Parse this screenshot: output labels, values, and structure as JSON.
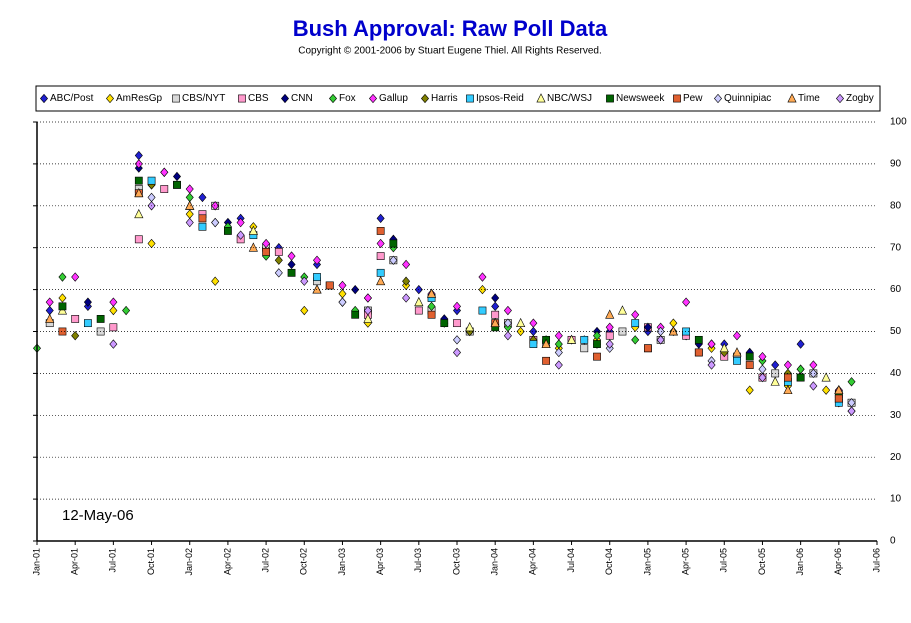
{
  "chart_data": {
    "type": "scatter",
    "title": "Bush Approval:  Raw Poll Data",
    "subtitle": "Copyright © 2001-2006 by Stuart Eugene Thiel.  All Rights Reserved.",
    "annotation": "12-May-06",
    "xlim": [
      "2001-01",
      "2006-07"
    ],
    "xticks": [
      {
        "value": "2001-01",
        "label": "Jan-01"
      },
      {
        "value": "2001-04",
        "label": "Apr-01"
      },
      {
        "value": "2001-07",
        "label": "Jul-01"
      },
      {
        "value": "2001-10",
        "label": "Oct-01"
      },
      {
        "value": "2002-01",
        "label": "Jan-02"
      },
      {
        "value": "2002-04",
        "label": "Apr-02"
      },
      {
        "value": "2002-07",
        "label": "Jul-02"
      },
      {
        "value": "2002-10",
        "label": "Oct-02"
      },
      {
        "value": "2003-01",
        "label": "Jan-03"
      },
      {
        "value": "2003-04",
        "label": "Apr-03"
      },
      {
        "value": "2003-07",
        "label": "Jul-03"
      },
      {
        "value": "2003-10",
        "label": "Oct-03"
      },
      {
        "value": "2004-01",
        "label": "Jan-04"
      },
      {
        "value": "2004-04",
        "label": "Apr-04"
      },
      {
        "value": "2004-07",
        "label": "Jul-04"
      },
      {
        "value": "2004-10",
        "label": "Oct-04"
      },
      {
        "value": "2005-01",
        "label": "Jan-05"
      },
      {
        "value": "2005-04",
        "label": "Apr-05"
      },
      {
        "value": "2005-07",
        "label": "Jul-05"
      },
      {
        "value": "2005-10",
        "label": "Oct-05"
      },
      {
        "value": "2006-01",
        "label": "Jan-06"
      },
      {
        "value": "2006-04",
        "label": "Apr-06"
      },
      {
        "value": "2006-07",
        "label": "Jul-06"
      }
    ],
    "ylim": [
      0,
      100
    ],
    "yticks": [
      0,
      10,
      20,
      30,
      40,
      50,
      60,
      70,
      80,
      90,
      100
    ],
    "grid": true,
    "series": [
      {
        "name": "ABC/Post",
        "color": "#2020d0",
        "marker": "diamond",
        "x": [
          "2001-02",
          "2001-05",
          "2001-09",
          "2001-11",
          "2002-02",
          "2002-05",
          "2002-08",
          "2002-11",
          "2003-03",
          "2003-04",
          "2003-07",
          "2003-10",
          "2004-01",
          "2004-04",
          "2004-07",
          "2004-10",
          "2005-01",
          "2005-04",
          "2005-07",
          "2005-11",
          "2006-01",
          "2006-04"
        ],
        "values": [
          55,
          56,
          92,
          88,
          82,
          77,
          70,
          66,
          58,
          77,
          60,
          55,
          56,
          50,
          48,
          50,
          50,
          49,
          47,
          42,
          47,
          33
        ]
      },
      {
        "name": "AmResGp",
        "color": "#ffe000",
        "marker": "diamond",
        "x": [
          "2001-03",
          "2001-07",
          "2001-10",
          "2002-01",
          "2002-03",
          "2002-06",
          "2002-10",
          "2003-01",
          "2003-03",
          "2003-06",
          "2003-09",
          "2003-12",
          "2004-03",
          "2004-06",
          "2004-09",
          "2004-12",
          "2005-03",
          "2005-06",
          "2005-09",
          "2005-12",
          "2006-03"
        ],
        "values": [
          58,
          55,
          71,
          78,
          62,
          75,
          55,
          59,
          52,
          61,
          52,
          60,
          50,
          46,
          48,
          51,
          52,
          46,
          36,
          37,
          36
        ]
      },
      {
        "name": "CBS/NYT",
        "color": "#d8d8d8",
        "marker": "square",
        "x": [
          "2001-02",
          "2001-06",
          "2001-09",
          "2001-12",
          "2002-03",
          "2002-07",
          "2002-11",
          "2003-03",
          "2003-05",
          "2003-08",
          "2003-11",
          "2004-02",
          "2004-05",
          "2004-08",
          "2004-11",
          "2005-02",
          "2005-05",
          "2005-08",
          "2005-11",
          "2006-02",
          "2006-05"
        ],
        "values": [
          52,
          50,
          84,
          85,
          80,
          70,
          62,
          55,
          67,
          55,
          50,
          52,
          47,
          46,
          50,
          48,
          45,
          44,
          40,
          40,
          33
        ]
      },
      {
        "name": "CBS",
        "color": "#ff99cc",
        "marker": "square",
        "x": [
          "2001-04",
          "2001-07",
          "2001-09",
          "2001-11",
          "2002-02",
          "2002-05",
          "2002-08",
          "2002-12",
          "2003-03",
          "2003-04",
          "2003-07",
          "2003-10",
          "2004-01",
          "2004-04",
          "2004-07",
          "2004-10",
          "2005-01",
          "2005-04",
          "2005-07",
          "2005-10",
          "2006-01",
          "2006-04"
        ],
        "values": [
          53,
          51,
          72,
          84,
          78,
          72,
          69,
          61,
          54,
          68,
          55,
          52,
          54,
          48,
          48,
          49,
          51,
          49,
          44,
          39,
          39,
          34
        ]
      },
      {
        "name": "CNN",
        "color": "#000080",
        "marker": "diamond",
        "x": [
          "2001-05",
          "2001-09",
          "2001-12",
          "2002-04",
          "2002-09",
          "2003-02",
          "2003-05",
          "2003-09",
          "2004-01",
          "2004-05",
          "2004-09",
          "2005-01",
          "2005-05",
          "2005-09",
          "2006-01",
          "2006-05"
        ],
        "values": [
          57,
          89,
          87,
          76,
          66,
          60,
          72,
          53,
          58,
          48,
          50,
          51,
          47,
          45,
          41,
          31
        ]
      },
      {
        "name": "Fox",
        "color": "#33cc33",
        "marker": "diamond",
        "x": [
          "2001-01",
          "2001-03",
          "2001-08",
          "2001-10",
          "2002-01",
          "2002-04",
          "2002-07",
          "2002-10",
          "2003-02",
          "2003-05",
          "2003-08",
          "2003-11",
          "2004-02",
          "2004-06",
          "2004-09",
          "2004-12",
          "2005-03",
          "2005-06",
          "2005-10",
          "2006-01",
          "2006-05"
        ],
        "values": [
          46,
          63,
          55,
          85,
          82,
          75,
          68,
          63,
          55,
          70,
          56,
          50,
          51,
          47,
          49,
          48,
          50,
          47,
          43,
          41,
          38
        ]
      },
      {
        "name": "Gallup",
        "color": "#ff33ff",
        "marker": "diamond",
        "x": [
          "2001-02",
          "2001-04",
          "2001-07",
          "2001-09",
          "2001-11",
          "2002-01",
          "2002-03",
          "2002-05",
          "2002-07",
          "2002-09",
          "2002-11",
          "2003-01",
          "2003-03",
          "2003-04",
          "2003-06",
          "2003-08",
          "2003-10",
          "2003-12",
          "2004-02",
          "2004-04",
          "2004-06",
          "2004-08",
          "2004-10",
          "2004-12",
          "2005-02",
          "2005-04",
          "2005-06",
          "2005-08",
          "2005-10",
          "2005-12",
          "2006-02",
          "2006-04",
          "2006-05"
        ],
        "values": [
          57,
          63,
          57,
          90,
          88,
          84,
          80,
          76,
          71,
          68,
          67,
          61,
          58,
          71,
          66,
          59,
          56,
          63,
          55,
          52,
          49,
          48,
          51,
          54,
          51,
          57,
          47,
          49,
          44,
          42,
          42,
          36,
          31
        ]
      },
      {
        "name": "Harris",
        "color": "#808000",
        "marker": "diamond",
        "x": [
          "2001-04",
          "2001-10",
          "2002-03",
          "2002-08",
          "2003-01",
          "2003-06",
          "2003-11",
          "2004-04",
          "2004-09",
          "2005-02",
          "2005-07",
          "2005-12",
          "2006-04"
        ],
        "values": [
          49,
          85,
          76,
          67,
          57,
          62,
          50,
          48,
          47,
          48,
          45,
          40,
          35
        ]
      },
      {
        "name": "Ipsos-Reid",
        "color": "#33ccff",
        "marker": "square",
        "x": [
          "2001-05",
          "2001-10",
          "2002-02",
          "2002-06",
          "2002-11",
          "2003-04",
          "2003-08",
          "2003-12",
          "2004-04",
          "2004-08",
          "2004-12",
          "2005-04",
          "2005-08",
          "2005-12",
          "2006-04"
        ],
        "values": [
          52,
          86,
          75,
          73,
          63,
          64,
          58,
          55,
          47,
          48,
          52,
          50,
          43,
          38,
          33
        ]
      },
      {
        "name": "NBC/WSJ",
        "color": "#ffff99",
        "marker": "triangle",
        "x": [
          "2001-03",
          "2001-09",
          "2002-01",
          "2002-06",
          "2002-11",
          "2003-03",
          "2003-07",
          "2003-11",
          "2004-03",
          "2004-07",
          "2004-11",
          "2005-03",
          "2005-07",
          "2005-11",
          "2006-03"
        ],
        "values": [
          55,
          78,
          80,
          74,
          60,
          53,
          57,
          51,
          52,
          48,
          55,
          50,
          46,
          38,
          39
        ]
      },
      {
        "name": "Newsweek",
        "color": "#006400",
        "marker": "square",
        "x": [
          "2001-03",
          "2001-06",
          "2001-09",
          "2001-12",
          "2002-04",
          "2002-09",
          "2003-02",
          "2003-05",
          "2003-09",
          "2004-01",
          "2004-05",
          "2004-09",
          "2005-01",
          "2005-05",
          "2005-09",
          "2006-01",
          "2006-04"
        ],
        "values": [
          56,
          53,
          86,
          85,
          74,
          64,
          54,
          71,
          52,
          51,
          48,
          47,
          46,
          48,
          44,
          39,
          35
        ]
      },
      {
        "name": "Pew",
        "color": "#e06030",
        "marker": "square",
        "x": [
          "2001-03",
          "2001-09",
          "2002-02",
          "2002-07",
          "2002-12",
          "2003-04",
          "2003-08",
          "2004-01",
          "2004-05",
          "2004-09",
          "2005-01",
          "2005-05",
          "2005-09",
          "2005-12",
          "2006-04"
        ],
        "values": [
          50,
          83,
          77,
          69,
          61,
          74,
          54,
          52,
          43,
          44,
          46,
          45,
          42,
          39,
          34
        ]
      },
      {
        "name": "Quinnipiac",
        "color": "#ccccff",
        "marker": "diamond",
        "x": [
          "2001-10",
          "2002-03",
          "2002-08",
          "2003-01",
          "2003-05",
          "2003-10",
          "2004-02",
          "2004-06",
          "2004-10",
          "2005-02",
          "2005-06",
          "2005-10",
          "2006-02",
          "2006-05"
        ],
        "values": [
          82,
          76,
          64,
          57,
          67,
          48,
          52,
          45,
          46,
          50,
          43,
          41,
          40,
          33
        ]
      },
      {
        "name": "Time",
        "color": "#ffaa55",
        "marker": "triangle",
        "x": [
          "2001-02",
          "2001-09",
          "2002-01",
          "2002-06",
          "2002-11",
          "2003-04",
          "2003-08",
          "2004-01",
          "2004-05",
          "2004-10",
          "2005-03",
          "2005-08",
          "2005-12",
          "2006-04"
        ],
        "values": [
          53,
          83,
          80,
          70,
          60,
          62,
          59,
          52,
          47,
          54,
          50,
          45,
          36,
          36
        ]
      },
      {
        "name": "Zogby",
        "color": "#cc99ff",
        "marker": "diamond",
        "x": [
          "2001-07",
          "2001-10",
          "2002-01",
          "2002-05",
          "2002-10",
          "2003-03",
          "2003-06",
          "2003-10",
          "2004-02",
          "2004-06",
          "2004-10",
          "2005-02",
          "2005-06",
          "2005-10",
          "2006-02",
          "2006-05"
        ],
        "values": [
          47,
          80,
          76,
          73,
          62,
          55,
          58,
          45,
          49,
          42,
          47,
          48,
          42,
          39,
          37,
          31
        ]
      }
    ]
  }
}
